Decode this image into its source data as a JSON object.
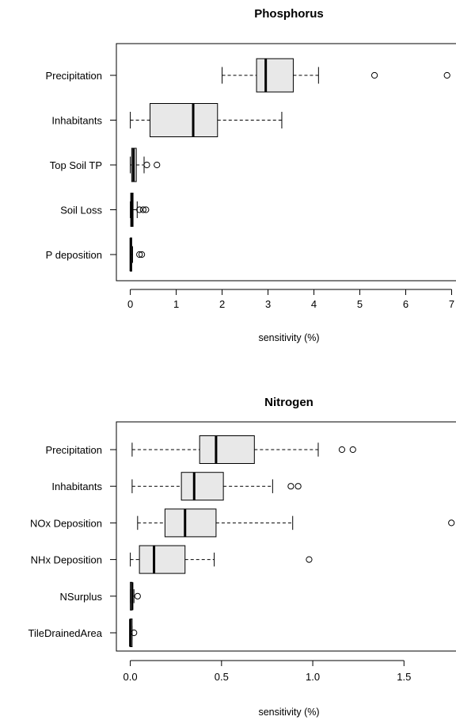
{
  "chart_data": [
    {
      "type": "boxplot",
      "orientation": "horizontal",
      "title": "Phosphorus",
      "xlabel": "sensitivity (%)",
      "ylabel": "",
      "xlim": [
        -0.2,
        7.0
      ],
      "xticks": [
        0,
        1,
        2,
        3,
        4,
        5,
        6,
        7
      ],
      "categories": [
        "Precipitation",
        "Inhabitants",
        "Top Soil TP",
        "Soil Loss",
        "P deposition"
      ],
      "boxes": [
        {
          "min": 2.0,
          "q1": 2.75,
          "median": 2.95,
          "q3": 3.55,
          "max": 4.1,
          "outliers": [
            5.32,
            6.9
          ]
        },
        {
          "min": 0.0,
          "q1": 0.43,
          "median": 1.37,
          "q3": 1.9,
          "max": 3.3,
          "outliers": []
        },
        {
          "min": 0.0,
          "q1": 0.03,
          "median": 0.07,
          "q3": 0.13,
          "max": 0.3,
          "outliers": [
            0.36,
            0.58
          ]
        },
        {
          "min": 0.0,
          "q1": 0.01,
          "median": 0.03,
          "q3": 0.06,
          "max": 0.15,
          "outliers": [
            0.2,
            0.28,
            0.34
          ]
        },
        {
          "min": 0.0,
          "q1": 0.0,
          "median": 0.01,
          "q3": 0.03,
          "max": 0.05,
          "outliers": [
            0.2,
            0.25
          ]
        }
      ],
      "colors": {
        "box_fill": "#e8e8e8"
      }
    },
    {
      "type": "boxplot",
      "orientation": "horizontal",
      "title": "Nitrogen",
      "xlabel": "sensitivity (%)",
      "ylabel": "",
      "xlim": [
        -0.05,
        1.77
      ],
      "xticks": [
        0.0,
        0.5,
        1.0,
        1.5
      ],
      "xtick_labels": [
        "0.0",
        "0.5",
        "1.0",
        "1.5"
      ],
      "categories": [
        "Precipitation",
        "Inhabitants",
        "NOx Deposition",
        "NHx Deposition",
        "NSurplus",
        "TileDrainedArea"
      ],
      "boxes": [
        {
          "min": 0.01,
          "q1": 0.38,
          "median": 0.47,
          "q3": 0.68,
          "max": 1.03,
          "outliers": [
            1.16,
            1.22
          ]
        },
        {
          "min": 0.01,
          "q1": 0.28,
          "median": 0.35,
          "q3": 0.51,
          "max": 0.78,
          "outliers": [
            0.88,
            0.92
          ]
        },
        {
          "min": 0.04,
          "q1": 0.19,
          "median": 0.3,
          "q3": 0.47,
          "max": 0.89,
          "outliers": [
            1.76
          ]
        },
        {
          "min": 0.0,
          "q1": 0.05,
          "median": 0.13,
          "q3": 0.3,
          "max": 0.46,
          "outliers": [
            0.98
          ]
        },
        {
          "min": 0.0,
          "q1": 0.0,
          "median": 0.01,
          "q3": 0.01,
          "max": 0.02,
          "outliers": [
            0.04
          ]
        },
        {
          "min": 0.0,
          "q1": 0.0,
          "median": 0.0,
          "q3": 0.01,
          "max": 0.01,
          "outliers": [
            0.02
          ]
        }
      ],
      "colors": {
        "box_fill": "#e8e8e8"
      }
    }
  ]
}
